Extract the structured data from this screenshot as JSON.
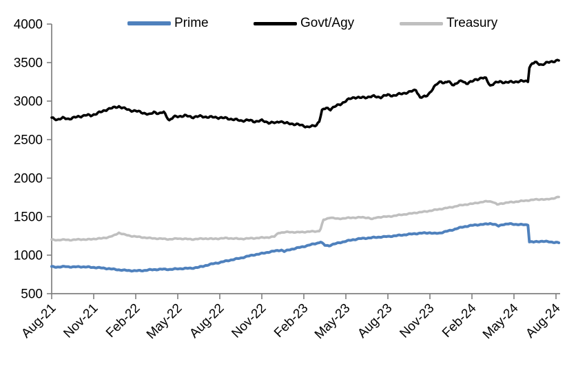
{
  "chart_data": {
    "type": "line",
    "title": "",
    "xlabel": "",
    "ylabel": "",
    "grid": false,
    "legend_position": "top",
    "axis_color": "#7F7F7F",
    "text_color": "#000000",
    "y_axis": {
      "min": 500,
      "max": 4000,
      "step": 500,
      "ticks": [
        500,
        1000,
        1500,
        2000,
        2500,
        3000,
        3500,
        4000
      ]
    },
    "x_axis": {
      "tick_labels": [
        "Aug-21",
        "Nov-21",
        "Feb-22",
        "May-22",
        "Aug-22",
        "Nov-22",
        "Feb-23",
        "May-23",
        "Aug-23",
        "Nov-23",
        "Feb-24",
        "May-24",
        "Aug-24"
      ],
      "tick_months": [
        0,
        3,
        6,
        9,
        12,
        15,
        18,
        21,
        24,
        27,
        30,
        33,
        36
      ]
    },
    "series": [
      {
        "name": "Prime",
        "color": "#4F81BD",
        "points": [
          [
            0,
            850
          ],
          [
            0.5,
            845
          ],
          [
            1,
            853
          ],
          [
            1.5,
            846
          ],
          [
            2,
            850
          ],
          [
            2.5,
            846
          ],
          [
            3,
            841
          ],
          [
            3.5,
            835
          ],
          [
            4,
            826
          ],
          [
            4.5,
            815
          ],
          [
            5,
            806
          ],
          [
            5.5,
            800
          ],
          [
            6,
            797
          ],
          [
            6.5,
            800
          ],
          [
            7,
            809
          ],
          [
            7.5,
            814
          ],
          [
            8,
            817
          ],
          [
            8.5,
            815
          ],
          [
            9,
            823
          ],
          [
            9.5,
            827
          ],
          [
            10,
            831
          ],
          [
            10.5,
            842
          ],
          [
            11,
            866
          ],
          [
            11.5,
            888
          ],
          [
            12,
            905
          ],
          [
            12.5,
            926
          ],
          [
            13,
            945
          ],
          [
            13.5,
            962
          ],
          [
            14,
            986
          ],
          [
            14.5,
            1006
          ],
          [
            15,
            1021
          ],
          [
            15.5,
            1040
          ],
          [
            16,
            1056
          ],
          [
            16.4,
            1066
          ],
          [
            16.6,
            1048
          ],
          [
            17,
            1072
          ],
          [
            17.5,
            1092
          ],
          [
            18,
            1112
          ],
          [
            18.5,
            1136
          ],
          [
            19,
            1158
          ],
          [
            19.2,
            1172
          ],
          [
            19.5,
            1128
          ],
          [
            19.8,
            1122
          ],
          [
            20,
            1136
          ],
          [
            20.5,
            1160
          ],
          [
            21,
            1181
          ],
          [
            21.5,
            1200
          ],
          [
            22,
            1214
          ],
          [
            22.5,
            1221
          ],
          [
            23,
            1229
          ],
          [
            23.5,
            1236
          ],
          [
            24,
            1242
          ],
          [
            24.5,
            1251
          ],
          [
            25,
            1261
          ],
          [
            25.5,
            1271
          ],
          [
            26,
            1280
          ],
          [
            26.5,
            1286
          ],
          [
            27,
            1291
          ],
          [
            27.3,
            1281
          ],
          [
            27.7,
            1287
          ],
          [
            28,
            1301
          ],
          [
            28.5,
            1322
          ],
          [
            29,
            1350
          ],
          [
            29.5,
            1371
          ],
          [
            30,
            1386
          ],
          [
            30.5,
            1396
          ],
          [
            31,
            1402
          ],
          [
            31.3,
            1411
          ],
          [
            31.6,
            1400
          ],
          [
            31.9,
            1377
          ],
          [
            32.2,
            1399
          ],
          [
            32.7,
            1406
          ],
          [
            33,
            1401
          ],
          [
            33.5,
            1396
          ],
          [
            34,
            1394
          ],
          [
            34.1,
            1176
          ],
          [
            34.4,
            1170
          ],
          [
            34.7,
            1176
          ],
          [
            35,
            1181
          ],
          [
            35.3,
            1176
          ],
          [
            35.6,
            1171
          ],
          [
            36,
            1166
          ],
          [
            36.2,
            1161
          ]
        ]
      },
      {
        "name": "Govt/Agy",
        "color": "#000000",
        "points": [
          [
            0,
            2780
          ],
          [
            0.4,
            2762
          ],
          [
            0.8,
            2778
          ],
          [
            1.2,
            2770
          ],
          [
            1.6,
            2785
          ],
          [
            2,
            2800
          ],
          [
            2.4,
            2818
          ],
          [
            2.8,
            2812
          ],
          [
            3.2,
            2840
          ],
          [
            3.6,
            2862
          ],
          [
            4,
            2898
          ],
          [
            4.4,
            2912
          ],
          [
            4.8,
            2932
          ],
          [
            5.2,
            2902
          ],
          [
            5.6,
            2882
          ],
          [
            6,
            2870
          ],
          [
            6.5,
            2851
          ],
          [
            7,
            2822
          ],
          [
            7.3,
            2860
          ],
          [
            7.7,
            2838
          ],
          [
            8,
            2856
          ],
          [
            8.4,
            2752
          ],
          [
            8.7,
            2792
          ],
          [
            9,
            2800
          ],
          [
            9.5,
            2812
          ],
          [
            10,
            2792
          ],
          [
            10.5,
            2802
          ],
          [
            11,
            2796
          ],
          [
            11.5,
            2790
          ],
          [
            12,
            2786
          ],
          [
            12.5,
            2776
          ],
          [
            13,
            2762
          ],
          [
            13.5,
            2746
          ],
          [
            14,
            2752
          ],
          [
            14.5,
            2736
          ],
          [
            15,
            2746
          ],
          [
            15.5,
            2722
          ],
          [
            16,
            2716
          ],
          [
            16.3,
            2742
          ],
          [
            16.7,
            2712
          ],
          [
            17,
            2710
          ],
          [
            17.5,
            2696
          ],
          [
            18,
            2681
          ],
          [
            18.3,
            2662
          ],
          [
            18.6,
            2672
          ],
          [
            18.9,
            2691
          ],
          [
            19.1,
            2742
          ],
          [
            19.3,
            2876
          ],
          [
            19.6,
            2912
          ],
          [
            19.9,
            2896
          ],
          [
            20.2,
            2926
          ],
          [
            20.6,
            2961
          ],
          [
            21,
            3001
          ],
          [
            21.3,
            3031
          ],
          [
            21.6,
            3051
          ],
          [
            22,
            3041
          ],
          [
            22.5,
            3052
          ],
          [
            23,
            3061
          ],
          [
            23.5,
            3051
          ],
          [
            24,
            3081
          ],
          [
            24.5,
            3071
          ],
          [
            25,
            3101
          ],
          [
            25.5,
            3112
          ],
          [
            26,
            3151
          ],
          [
            26.3,
            3042
          ],
          [
            26.7,
            3062
          ],
          [
            27,
            3112
          ],
          [
            27.5,
            3222
          ],
          [
            27.8,
            3262
          ],
          [
            28,
            3232
          ],
          [
            28.3,
            3252
          ],
          [
            28.7,
            3212
          ],
          [
            29,
            3242
          ],
          [
            29.3,
            3262
          ],
          [
            29.6,
            3232
          ],
          [
            30,
            3252
          ],
          [
            30.3,
            3282
          ],
          [
            30.7,
            3302
          ],
          [
            31,
            3292
          ],
          [
            31.3,
            3202
          ],
          [
            31.6,
            3232
          ],
          [
            32,
            3252
          ],
          [
            32.5,
            3242
          ],
          [
            33,
            3252
          ],
          [
            33.5,
            3256
          ],
          [
            34,
            3262
          ],
          [
            34.1,
            3442
          ],
          [
            34.3,
            3482
          ],
          [
            34.5,
            3502
          ],
          [
            34.7,
            3492
          ],
          [
            35,
            3472
          ],
          [
            35.3,
            3492
          ],
          [
            35.6,
            3512
          ],
          [
            36,
            3522
          ],
          [
            36.2,
            3528
          ]
        ]
      },
      {
        "name": "Treasury",
        "color": "#BFBFBF",
        "points": [
          [
            0,
            1200
          ],
          [
            0.5,
            1196
          ],
          [
            1,
            1201
          ],
          [
            1.5,
            1196
          ],
          [
            2,
            1206
          ],
          [
            2.5,
            1201
          ],
          [
            3,
            1211
          ],
          [
            3.5,
            1216
          ],
          [
            4,
            1231
          ],
          [
            4.4,
            1251
          ],
          [
            4.8,
            1291
          ],
          [
            5.2,
            1266
          ],
          [
            5.6,
            1251
          ],
          [
            6,
            1241
          ],
          [
            6.5,
            1231
          ],
          [
            7,
            1221
          ],
          [
            7.5,
            1216
          ],
          [
            8,
            1211
          ],
          [
            8.5,
            1206
          ],
          [
            9,
            1216
          ],
          [
            9.5,
            1211
          ],
          [
            10,
            1206
          ],
          [
            10.5,
            1211
          ],
          [
            11,
            1216
          ],
          [
            11.5,
            1211
          ],
          [
            12,
            1216
          ],
          [
            12.5,
            1221
          ],
          [
            13,
            1216
          ],
          [
            13.5,
            1211
          ],
          [
            14,
            1216
          ],
          [
            14.5,
            1221
          ],
          [
            15,
            1226
          ],
          [
            15.5,
            1231
          ],
          [
            15.9,
            1241
          ],
          [
            16.2,
            1291
          ],
          [
            16.6,
            1296
          ],
          [
            17,
            1301
          ],
          [
            17.5,
            1296
          ],
          [
            18,
            1301
          ],
          [
            18.5,
            1306
          ],
          [
            19,
            1311
          ],
          [
            19.15,
            1316
          ],
          [
            19.4,
            1456
          ],
          [
            19.7,
            1476
          ],
          [
            19.9,
            1491
          ],
          [
            20.1,
            1481
          ],
          [
            20.4,
            1471
          ],
          [
            20.7,
            1476
          ],
          [
            21,
            1481
          ],
          [
            21.5,
            1486
          ],
          [
            22,
            1491
          ],
          [
            22.6,
            1486
          ],
          [
            22.9,
            1466
          ],
          [
            23.2,
            1491
          ],
          [
            23.6,
            1496
          ],
          [
            24,
            1501
          ],
          [
            24.5,
            1511
          ],
          [
            25,
            1526
          ],
          [
            25.5,
            1536
          ],
          [
            26,
            1551
          ],
          [
            26.5,
            1561
          ],
          [
            27,
            1576
          ],
          [
            27.5,
            1591
          ],
          [
            28,
            1606
          ],
          [
            28.5,
            1621
          ],
          [
            29,
            1641
          ],
          [
            29.5,
            1656
          ],
          [
            30,
            1666
          ],
          [
            30.4,
            1681
          ],
          [
            30.8,
            1691
          ],
          [
            31.2,
            1701
          ],
          [
            31.5,
            1691
          ],
          [
            31.8,
            1656
          ],
          [
            32.1,
            1671
          ],
          [
            32.5,
            1681
          ],
          [
            33,
            1691
          ],
          [
            33.5,
            1701
          ],
          [
            34,
            1711
          ],
          [
            34.5,
            1721
          ],
          [
            35,
            1726
          ],
          [
            35.3,
            1721
          ],
          [
            35.6,
            1731
          ],
          [
            36,
            1746
          ],
          [
            36.2,
            1756
          ]
        ]
      }
    ]
  }
}
